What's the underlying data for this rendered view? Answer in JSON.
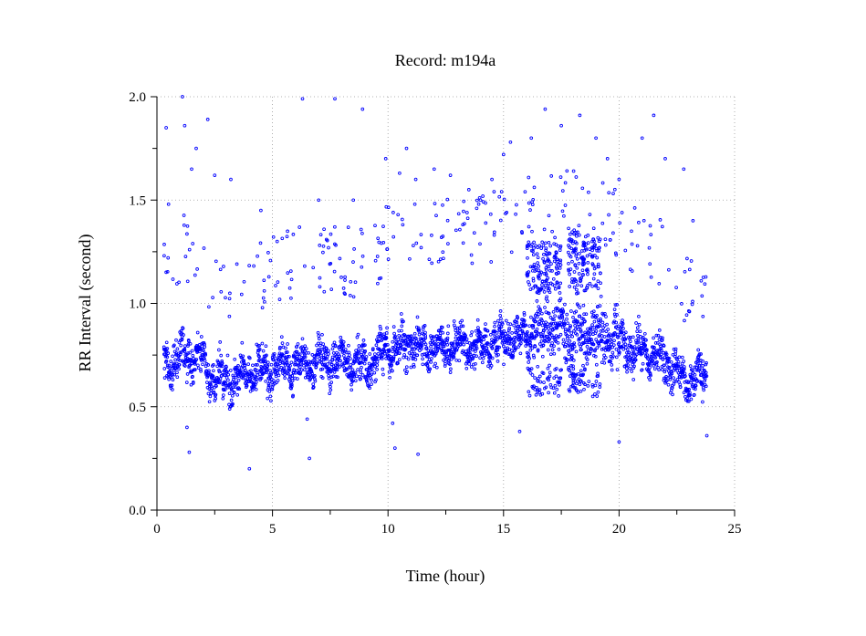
{
  "chart_data": {
    "type": "scatter",
    "title": "Record:  m194a",
    "xlabel": "Time (hour)",
    "ylabel": "RR Interval (second)",
    "xlim": [
      0,
      25
    ],
    "ylim": [
      0.0,
      2.0
    ],
    "x_ticks": [
      0,
      5,
      10,
      15,
      20,
      25
    ],
    "x_tick_labels": [
      "0",
      "5",
      "10",
      "15",
      "20",
      "25"
    ],
    "x_minor_ticks": [
      2.5,
      7.5,
      12.5,
      17.5,
      22.5
    ],
    "y_ticks": [
      0.0,
      0.5,
      1.0,
      1.5,
      2.0
    ],
    "y_tick_labels": [
      "0.0",
      "0.5",
      "1.0",
      "1.5",
      "2.0"
    ],
    "y_minor_ticks": [
      0.25,
      0.75,
      1.25,
      1.75
    ],
    "grid": true,
    "legend": "none",
    "marker": "open-circle",
    "point_color": "#0000ff",
    "series": [
      {
        "x_range": [
          0.3,
          23.8
        ],
        "baseline_profile": [
          [
            0.3,
            0.7
          ],
          [
            1.0,
            0.74
          ],
          [
            1.8,
            0.76
          ],
          [
            2.3,
            0.66
          ],
          [
            3.0,
            0.62
          ],
          [
            4.0,
            0.66
          ],
          [
            5.0,
            0.69
          ],
          [
            6.0,
            0.7
          ],
          [
            7.0,
            0.72
          ],
          [
            8.0,
            0.72
          ],
          [
            9.0,
            0.7
          ],
          [
            10.0,
            0.78
          ],
          [
            11.0,
            0.8
          ],
          [
            12.0,
            0.78
          ],
          [
            13.0,
            0.8
          ],
          [
            14.0,
            0.79
          ],
          [
            15.0,
            0.83
          ],
          [
            16.0,
            0.85
          ],
          [
            17.0,
            0.88
          ],
          [
            18.0,
            0.87
          ],
          [
            19.0,
            0.86
          ],
          [
            20.0,
            0.8
          ],
          [
            21.0,
            0.76
          ],
          [
            22.0,
            0.73
          ],
          [
            22.8,
            0.62
          ],
          [
            23.8,
            0.66
          ]
        ],
        "band_spread": 0.09,
        "ectopic_cluster_ranges": [
          [
            16.0,
            17.5,
            1.05,
            1.3
          ],
          [
            17.8,
            19.2,
            1.05,
            1.35
          ]
        ],
        "outliers": [
          [
            0.4,
            1.85
          ],
          [
            0.5,
            1.48
          ],
          [
            1.1,
            2.0
          ],
          [
            1.2,
            1.86
          ],
          [
            1.5,
            1.65
          ],
          [
            1.7,
            1.75
          ],
          [
            2.2,
            1.89
          ],
          [
            2.5,
            1.62
          ],
          [
            1.3,
            0.4
          ],
          [
            1.4,
            0.28
          ],
          [
            3.2,
            1.6
          ],
          [
            4.0,
            0.2
          ],
          [
            4.5,
            1.45
          ],
          [
            5.2,
            1.3
          ],
          [
            6.3,
            1.99
          ],
          [
            6.5,
            0.44
          ],
          [
            6.6,
            0.25
          ],
          [
            7.0,
            1.5
          ],
          [
            7.7,
            1.99
          ],
          [
            8.5,
            1.5
          ],
          [
            8.9,
            1.94
          ],
          [
            9.9,
            1.7
          ],
          [
            10.2,
            0.42
          ],
          [
            10.3,
            0.3
          ],
          [
            10.5,
            1.63
          ],
          [
            10.8,
            1.75
          ],
          [
            11.2,
            1.6
          ],
          [
            11.3,
            0.27
          ],
          [
            12.0,
            1.65
          ],
          [
            12.7,
            1.62
          ],
          [
            13.5,
            1.55
          ],
          [
            14.0,
            1.5
          ],
          [
            14.5,
            1.6
          ],
          [
            15.0,
            1.72
          ],
          [
            15.3,
            1.78
          ],
          [
            15.7,
            0.38
          ],
          [
            16.2,
            1.8
          ],
          [
            16.8,
            1.94
          ],
          [
            17.5,
            1.86
          ],
          [
            18.3,
            1.91
          ],
          [
            19.0,
            1.8
          ],
          [
            19.5,
            1.7
          ],
          [
            20.0,
            0.33
          ],
          [
            20.0,
            1.6
          ],
          [
            21.0,
            1.8
          ],
          [
            21.5,
            1.91
          ],
          [
            22.0,
            1.7
          ],
          [
            22.8,
            1.65
          ],
          [
            23.2,
            1.4
          ],
          [
            23.8,
            0.36
          ]
        ]
      }
    ]
  }
}
